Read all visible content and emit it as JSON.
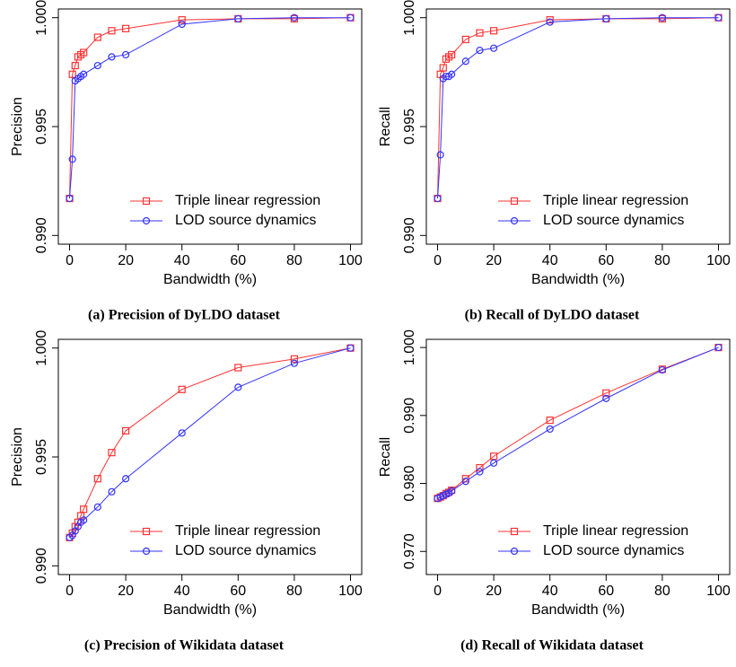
{
  "chart_data": [
    {
      "type": "line",
      "caption": "(a) Precision of DyLDO dataset",
      "xlabel": "Bandwidth (%)",
      "ylabel": "Precision",
      "x": [
        0,
        1,
        2,
        3,
        4,
        5,
        10,
        15,
        20,
        40,
        60,
        80,
        100
      ],
      "xlim": [
        -4,
        104
      ],
      "xticks": [
        0,
        20,
        40,
        60,
        80,
        100
      ],
      "ylim": [
        0.9896,
        1.0004
      ],
      "yticks": [
        {
          "value": 0.99,
          "label": "0.990"
        },
        0.995,
        {
          "value": 1,
          "label": "1.000"
        }
      ],
      "legend": "bottom-right",
      "series": [
        {
          "name": "Triple linear regression",
          "color": "#ff3333",
          "marker": "square",
          "values": [
            0.9917,
            0.9974,
            0.9978,
            0.9982,
            0.9983,
            0.9984,
            0.9991,
            0.9994,
            0.9995,
            0.9999,
            0.99995,
            0.99995,
            1.0
          ]
        },
        {
          "name": "LOD source dynamics",
          "color": "#3333ff",
          "marker": "circle",
          "values": [
            0.9917,
            0.9935,
            0.9971,
            0.9972,
            0.9973,
            0.9974,
            0.9978,
            0.9982,
            0.9983,
            0.9997,
            0.99995,
            1.0,
            1.0
          ]
        }
      ]
    },
    {
      "type": "line",
      "caption": "(b) Recall of DyLDO dataset",
      "xlabel": "Bandwidth (%)",
      "ylabel": "Recall",
      "x": [
        0,
        1,
        2,
        3,
        4,
        5,
        10,
        15,
        20,
        40,
        60,
        80,
        100
      ],
      "xlim": [
        -4,
        104
      ],
      "xticks": [
        0,
        20,
        40,
        60,
        80,
        100
      ],
      "ylim": [
        0.9896,
        1.0004
      ],
      "yticks": [
        {
          "value": 0.99,
          "label": "0.990"
        },
        0.995,
        {
          "value": 1,
          "label": "1.000"
        }
      ],
      "legend": "bottom-right",
      "series": [
        {
          "name": "Triple linear regression",
          "color": "#ff3333",
          "marker": "square",
          "values": [
            0.9917,
            0.9974,
            0.9977,
            0.9981,
            0.9982,
            0.9983,
            0.999,
            0.9993,
            0.9994,
            0.9999,
            0.99995,
            0.99995,
            1.0
          ]
        },
        {
          "name": "LOD source dynamics",
          "color": "#3333ff",
          "marker": "circle",
          "values": [
            0.9917,
            0.9937,
            0.9972,
            0.9973,
            0.9973,
            0.9974,
            0.998,
            0.9985,
            0.9986,
            0.9998,
            0.99995,
            1.0,
            1.0
          ]
        }
      ]
    },
    {
      "type": "line",
      "caption": "(c) Precision of Wikidata dataset",
      "xlabel": "Bandwidth (%)",
      "ylabel": "Precision",
      "x": [
        0,
        1,
        2,
        3,
        4,
        5,
        10,
        15,
        20,
        40,
        60,
        80,
        100
      ],
      "xlim": [
        -4,
        104
      ],
      "xticks": [
        0,
        20,
        40,
        60,
        80,
        100
      ],
      "ylim": [
        0.9896,
        1.0004
      ],
      "yticks": [
        {
          "value": 0.99,
          "label": "0.990"
        },
        0.995,
        {
          "value": 1,
          "label": "1.000"
        }
      ],
      "legend": "bottom-right",
      "series": [
        {
          "name": "Triple linear regression",
          "color": "#ff3333",
          "marker": "square",
          "values": [
            0.9913,
            0.9915,
            0.9918,
            0.992,
            0.9923,
            0.9926,
            0.994,
            0.9952,
            0.9962,
            0.9981,
            0.9991,
            0.9995,
            1.0
          ]
        },
        {
          "name": "LOD source dynamics",
          "color": "#3333ff",
          "marker": "circle",
          "values": [
            0.9913,
            0.9914,
            0.9916,
            0.9918,
            0.992,
            0.9921,
            0.9927,
            0.9934,
            0.994,
            0.9961,
            0.9982,
            0.9993,
            1.0
          ]
        }
      ]
    },
    {
      "type": "line",
      "caption": "(d) Recall of Wikidata dataset",
      "xlabel": "Bandwidth (%)",
      "ylabel": "Recall",
      "x": [
        0,
        1,
        2,
        3,
        4,
        5,
        10,
        15,
        20,
        40,
        60,
        80,
        100
      ],
      "xlim": [
        -4,
        104
      ],
      "xticks": [
        0,
        20,
        40,
        60,
        80,
        100
      ],
      "ylim": [
        0.9666,
        1.0012
      ],
      "yticks": [
        {
          "value": 0.97,
          "label": "0.970"
        },
        {
          "value": 0.98,
          "label": "0.980"
        },
        {
          "value": 0.99,
          "label": "0.990"
        },
        {
          "value": 1,
          "label": "1.000"
        }
      ],
      "legend": "bottom-right",
      "series": [
        {
          "name": "Triple linear regression",
          "color": "#ff3333",
          "marker": "square",
          "values": [
            0.9778,
            0.978,
            0.9782,
            0.9785,
            0.9787,
            0.979,
            0.9807,
            0.9823,
            0.984,
            0.9893,
            0.9933,
            0.9968,
            1.0
          ]
        },
        {
          "name": "LOD source dynamics",
          "color": "#3333ff",
          "marker": "circle",
          "values": [
            0.9778,
            0.978,
            0.9782,
            0.9784,
            0.9786,
            0.9789,
            0.9803,
            0.9817,
            0.983,
            0.988,
            0.9925,
            0.9967,
            1.0
          ]
        }
      ]
    }
  ]
}
